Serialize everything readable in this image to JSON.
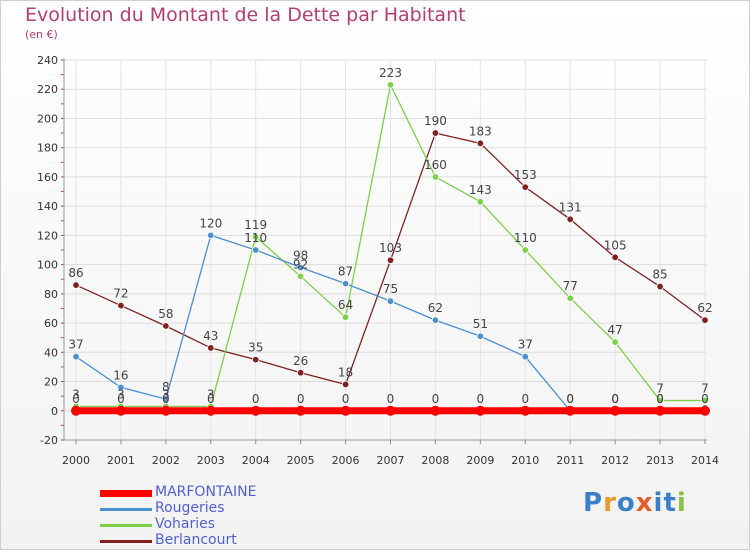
{
  "chart_data": {
    "type": "line",
    "title": "Evolution du Montant de la Dette par Habitant",
    "subtitle": "(en €)",
    "xlabel": "",
    "ylabel": "",
    "ylim": [
      -20,
      240
    ],
    "yticks": [
      -20,
      0,
      20,
      40,
      60,
      80,
      100,
      120,
      140,
      160,
      180,
      200,
      220,
      240
    ],
    "x": [
      "2000",
      "2001",
      "2002",
      "2003",
      "2004",
      "2005",
      "2006",
      "2007",
      "2008",
      "2009",
      "2010",
      "2011",
      "2012",
      "2013",
      "2014"
    ],
    "grid": true,
    "legend_position": "bottom-left",
    "series": [
      {
        "name": "MARFONTAINE",
        "color": "#ff0000",
        "values": [
          0,
          0,
          0,
          0,
          0,
          0,
          0,
          0,
          0,
          0,
          0,
          0,
          0,
          0,
          0
        ]
      },
      {
        "name": "Rougeries",
        "color": "#4a90d0",
        "values": [
          37,
          16,
          8,
          120,
          110,
          98,
          87,
          75,
          62,
          51,
          37,
          0,
          0,
          0,
          2
        ]
      },
      {
        "name": "Voharies",
        "color": "#7cd04a",
        "values": [
          3,
          3,
          3,
          3,
          119,
          92,
          64,
          223,
          160,
          143,
          110,
          77,
          47,
          7,
          7
        ]
      },
      {
        "name": "Berlancourt",
        "color": "#802020",
        "values": [
          86,
          72,
          58,
          43,
          35,
          26,
          18,
          103,
          190,
          183,
          153,
          131,
          105,
          85,
          62
        ]
      }
    ],
    "data_labels": [
      [
        "0",
        "0",
        "0",
        "0",
        "0",
        "0",
        "0",
        "0",
        "0",
        "0",
        "0",
        "0",
        "0",
        "0",
        "0"
      ],
      [
        "37",
        "16",
        "8",
        "120",
        "110",
        "98",
        "87",
        "75",
        "62",
        "51",
        "37",
        "0",
        "0",
        "0",
        ""
      ],
      [
        "3",
        "3",
        "3",
        "3",
        "119",
        "92",
        "64",
        "223",
        "160",
        "143",
        "110",
        "77",
        "47",
        "7",
        "7"
      ],
      [
        "86",
        "72",
        "58",
        "43",
        "35",
        "26",
        "18",
        "103",
        "190",
        "183",
        "153",
        "131",
        "105",
        "85",
        "62"
      ]
    ]
  },
  "logo": {
    "letters": [
      "P",
      "r",
      "o",
      "x",
      "i",
      "t",
      "i"
    ],
    "colors": [
      "#3a7fc8",
      "#e89a2a",
      "#3a7fc8",
      "#e85a2a",
      "#3a7fc8",
      "#3a7fc8",
      "#8ac040"
    ]
  }
}
